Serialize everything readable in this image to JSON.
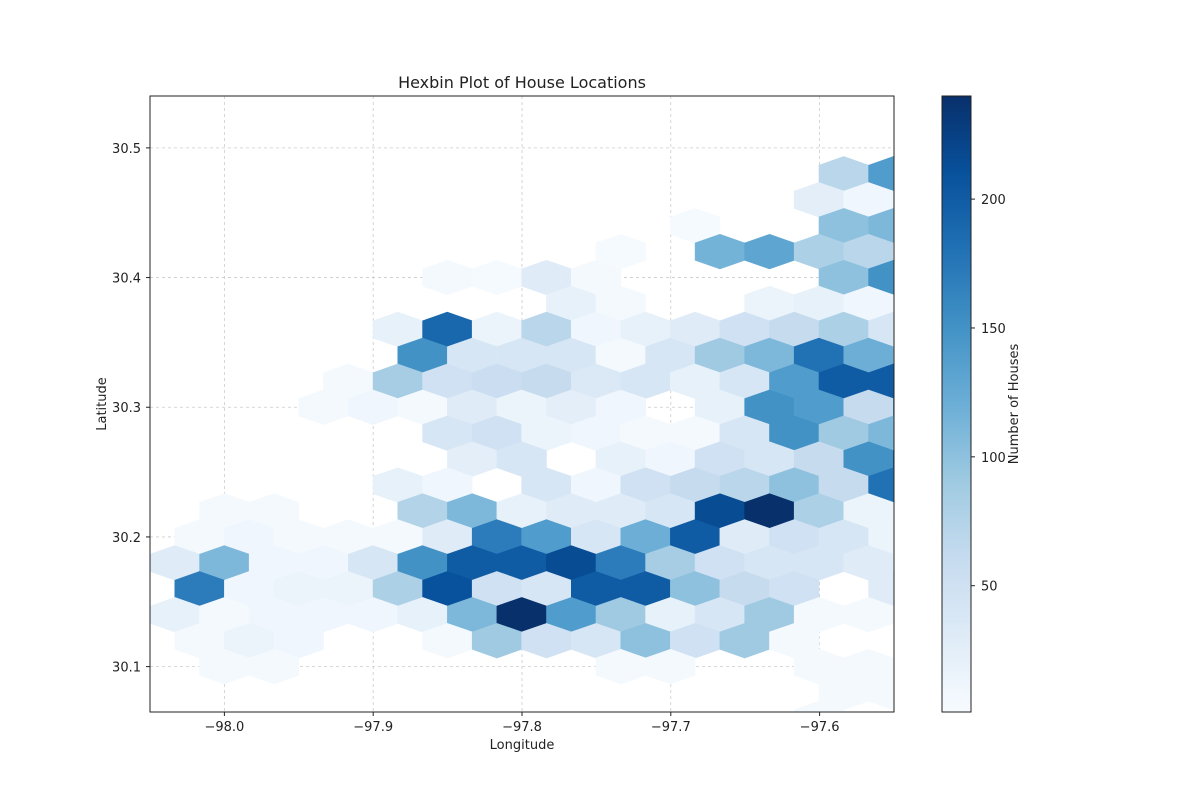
{
  "chart_data": {
    "type": "hexbin",
    "title": "Hexbin Plot of House Locations",
    "xlabel": "Longitude",
    "ylabel": "Latitude",
    "xlim": [
      -98.05,
      -97.55
    ],
    "ylim": [
      30.065,
      30.54
    ],
    "xticks": [
      -98.0,
      -97.9,
      -97.8,
      -97.7,
      -97.6
    ],
    "xtick_labels": [
      "−98.0",
      "−97.9",
      "−97.8",
      "−97.7",
      "−97.6"
    ],
    "yticks": [
      30.1,
      30.2,
      30.3,
      30.4,
      30.5
    ],
    "ytick_labels": [
      "30.1",
      "30.2",
      "30.3",
      "30.4",
      "30.5"
    ],
    "grid": true,
    "colormap": "Blues",
    "colorbar": {
      "label": "Number of Houses",
      "range": [
        1,
        240
      ],
      "ticks": [
        50,
        100,
        150,
        200
      ],
      "tick_labels": [
        "50",
        "100",
        "150",
        "200"
      ]
    },
    "hex_grid": {
      "x0": -98.0,
      "dx": 0.0333,
      "y0": 30.5,
      "dy": 0.02
    },
    "bins": [
      [
        15,
        0,
        15
      ],
      [
        12,
        1,
        70
      ],
      [
        13,
        1,
        140
      ],
      [
        14,
        1,
        95
      ],
      [
        15,
        1,
        5
      ],
      [
        12,
        2,
        25
      ],
      [
        13,
        2,
        10
      ],
      [
        14,
        2,
        20
      ],
      [
        16,
        2,
        3
      ],
      [
        9,
        3,
        3
      ],
      [
        12,
        3,
        100
      ],
      [
        13,
        3,
        110
      ],
      [
        17,
        3,
        35
      ],
      [
        18,
        3,
        25
      ],
      [
        8,
        4,
        3
      ],
      [
        10,
        4,
        115
      ],
      [
        11,
        4,
        130
      ],
      [
        12,
        4,
        80
      ],
      [
        13,
        4,
        70
      ],
      [
        14,
        4,
        10
      ],
      [
        15,
        4,
        10
      ],
      [
        17,
        4,
        130
      ],
      [
        4,
        5,
        5
      ],
      [
        5,
        5,
        3
      ],
      [
        6,
        5,
        30
      ],
      [
        7,
        5,
        5
      ],
      [
        12,
        5,
        100
      ],
      [
        13,
        5,
        150
      ],
      [
        14,
        5,
        80
      ],
      [
        15,
        5,
        160
      ],
      [
        16,
        5,
        160
      ],
      [
        17,
        5,
        20
      ],
      [
        18,
        5,
        15
      ],
      [
        7,
        6,
        20
      ],
      [
        8,
        6,
        5
      ],
      [
        11,
        6,
        15
      ],
      [
        12,
        6,
        20
      ],
      [
        13,
        6,
        10
      ],
      [
        14,
        6,
        5
      ],
      [
        15,
        6,
        30
      ],
      [
        16,
        6,
        40
      ],
      [
        18,
        6,
        100
      ],
      [
        19,
        6,
        20
      ],
      [
        3,
        7,
        20
      ],
      [
        4,
        7,
        190
      ],
      [
        5,
        7,
        15
      ],
      [
        6,
        7,
        70
      ],
      [
        7,
        7,
        10
      ],
      [
        8,
        7,
        20
      ],
      [
        9,
        7,
        30
      ],
      [
        10,
        7,
        50
      ],
      [
        11,
        7,
        60
      ],
      [
        12,
        7,
        80
      ],
      [
        13,
        7,
        40
      ],
      [
        14,
        7,
        140
      ],
      [
        15,
        7,
        150
      ],
      [
        16,
        7,
        70
      ],
      [
        17,
        7,
        5
      ],
      [
        18,
        7,
        5
      ],
      [
        4,
        8,
        150
      ],
      [
        5,
        8,
        40
      ],
      [
        6,
        8,
        40
      ],
      [
        7,
        8,
        40
      ],
      [
        8,
        8,
        5
      ],
      [
        9,
        8,
        40
      ],
      [
        10,
        8,
        90
      ],
      [
        11,
        8,
        110
      ],
      [
        12,
        8,
        180
      ],
      [
        13,
        8,
        120
      ],
      [
        14,
        8,
        100
      ],
      [
        15,
        8,
        50
      ],
      [
        16,
        8,
        25
      ],
      [
        17,
        8,
        110
      ],
      [
        2,
        9,
        5
      ],
      [
        3,
        9,
        85
      ],
      [
        4,
        9,
        50
      ],
      [
        5,
        9,
        55
      ],
      [
        6,
        9,
        60
      ],
      [
        7,
        9,
        35
      ],
      [
        8,
        9,
        40
      ],
      [
        9,
        9,
        20
      ],
      [
        10,
        9,
        40
      ],
      [
        11,
        9,
        140
      ],
      [
        12,
        9,
        200
      ],
      [
        13,
        9,
        200
      ],
      [
        14,
        9,
        30
      ],
      [
        15,
        9,
        5
      ],
      [
        16,
        9,
        20
      ],
      [
        17,
        9,
        40
      ],
      [
        18,
        9,
        15
      ],
      [
        19,
        9,
        10
      ],
      [
        2,
        10,
        5
      ],
      [
        3,
        10,
        10
      ],
      [
        4,
        10,
        5
      ],
      [
        5,
        10,
        30
      ],
      [
        6,
        10,
        15
      ],
      [
        7,
        10,
        25
      ],
      [
        8,
        10,
        10
      ],
      [
        10,
        10,
        20
      ],
      [
        11,
        10,
        150
      ],
      [
        12,
        10,
        140
      ],
      [
        13,
        10,
        60
      ],
      [
        14,
        10,
        140
      ],
      [
        15,
        10,
        70
      ],
      [
        16,
        10,
        15
      ],
      [
        20,
        10,
        5
      ],
      [
        4,
        11,
        40
      ],
      [
        5,
        11,
        50
      ],
      [
        6,
        11,
        15
      ],
      [
        7,
        11,
        10
      ],
      [
        8,
        11,
        5
      ],
      [
        9,
        11,
        5
      ],
      [
        10,
        11,
        40
      ],
      [
        11,
        11,
        150
      ],
      [
        12,
        11,
        90
      ],
      [
        13,
        11,
        110
      ],
      [
        14,
        11,
        170
      ],
      [
        15,
        11,
        100
      ],
      [
        16,
        11,
        70
      ],
      [
        17,
        11,
        5
      ],
      [
        5,
        12,
        25
      ],
      [
        6,
        12,
        40
      ],
      [
        8,
        12,
        20
      ],
      [
        9,
        12,
        10
      ],
      [
        10,
        12,
        50
      ],
      [
        11,
        12,
        40
      ],
      [
        12,
        12,
        60
      ],
      [
        13,
        12,
        150
      ],
      [
        14,
        12,
        190
      ],
      [
        15,
        12,
        10
      ],
      [
        16,
        12,
        70
      ],
      [
        17,
        12,
        25
      ],
      [
        3,
        13,
        20
      ],
      [
        4,
        13,
        10
      ],
      [
        6,
        13,
        40
      ],
      [
        7,
        13,
        10
      ],
      [
        8,
        13,
        50
      ],
      [
        9,
        13,
        60
      ],
      [
        10,
        13,
        70
      ],
      [
        11,
        13,
        100
      ],
      [
        12,
        13,
        60
      ],
      [
        13,
        13,
        180
      ],
      [
        14,
        13,
        110
      ],
      [
        15,
        13,
        40
      ],
      [
        16,
        13,
        5
      ],
      [
        20,
        13,
        40
      ],
      [
        0,
        14,
        5
      ],
      [
        1,
        14,
        5
      ],
      [
        4,
        14,
        75
      ],
      [
        5,
        14,
        110
      ],
      [
        6,
        14,
        20
      ],
      [
        7,
        14,
        30
      ],
      [
        8,
        14,
        30
      ],
      [
        9,
        14,
        40
      ],
      [
        10,
        14,
        215
      ],
      [
        11,
        14,
        240
      ],
      [
        12,
        14,
        80
      ],
      [
        13,
        14,
        15
      ],
      [
        14,
        14,
        5
      ],
      [
        19,
        14,
        70
      ],
      [
        20,
        14,
        40
      ],
      [
        -1,
        15,
        5
      ],
      [
        0,
        15,
        10
      ],
      [
        1,
        15,
        5
      ],
      [
        2,
        15,
        5
      ],
      [
        3,
        15,
        5
      ],
      [
        4,
        15,
        30
      ],
      [
        5,
        15,
        170
      ],
      [
        6,
        15,
        140
      ],
      [
        7,
        15,
        40
      ],
      [
        8,
        15,
        120
      ],
      [
        9,
        15,
        200
      ],
      [
        10,
        15,
        30
      ],
      [
        11,
        15,
        50
      ],
      [
        12,
        15,
        40
      ],
      [
        13,
        15,
        15
      ],
      [
        14,
        15,
        95
      ],
      [
        15,
        15,
        10
      ],
      [
        16,
        15,
        5
      ],
      [
        17,
        15,
        15
      ],
      [
        19,
        15,
        10
      ],
      [
        -2,
        16,
        5
      ],
      [
        -1,
        16,
        30
      ],
      [
        0,
        16,
        110
      ],
      [
        1,
        16,
        10
      ],
      [
        2,
        16,
        10
      ],
      [
        3,
        16,
        40
      ],
      [
        4,
        16,
        150
      ],
      [
        5,
        16,
        200
      ],
      [
        6,
        16,
        200
      ],
      [
        7,
        16,
        215
      ],
      [
        8,
        16,
        170
      ],
      [
        9,
        16,
        85
      ],
      [
        10,
        16,
        50
      ],
      [
        11,
        16,
        40
      ],
      [
        12,
        16,
        40
      ],
      [
        13,
        16,
        30
      ],
      [
        14,
        16,
        10
      ],
      [
        15,
        16,
        5
      ],
      [
        16,
        16,
        15
      ],
      [
        -1,
        17,
        170
      ],
      [
        0,
        17,
        10
      ],
      [
        1,
        17,
        15
      ],
      [
        2,
        17,
        15
      ],
      [
        3,
        17,
        80
      ],
      [
        4,
        17,
        210
      ],
      [
        5,
        17,
        50
      ],
      [
        6,
        17,
        40
      ],
      [
        7,
        17,
        200
      ],
      [
        8,
        17,
        200
      ],
      [
        9,
        17,
        100
      ],
      [
        10,
        17,
        60
      ],
      [
        11,
        17,
        50
      ],
      [
        13,
        17,
        30
      ],
      [
        16,
        17,
        5
      ],
      [
        -2,
        18,
        90
      ],
      [
        -1,
        18,
        20
      ],
      [
        0,
        18,
        5
      ],
      [
        1,
        18,
        10
      ],
      [
        2,
        18,
        10
      ],
      [
        3,
        18,
        10
      ],
      [
        4,
        18,
        20
      ],
      [
        5,
        18,
        110
      ],
      [
        6,
        18,
        240
      ],
      [
        7,
        18,
        140
      ],
      [
        8,
        18,
        90
      ],
      [
        9,
        18,
        20
      ],
      [
        10,
        18,
        40
      ],
      [
        11,
        18,
        90
      ],
      [
        12,
        18,
        5
      ],
      [
        13,
        18,
        5
      ],
      [
        14,
        18,
        5
      ],
      [
        15,
        18,
        40
      ],
      [
        16,
        18,
        10
      ],
      [
        -1,
        19,
        5
      ],
      [
        0,
        19,
        15
      ],
      [
        1,
        19,
        10
      ],
      [
        4,
        19,
        5
      ],
      [
        5,
        19,
        90
      ],
      [
        6,
        19,
        50
      ],
      [
        7,
        19,
        40
      ],
      [
        8,
        19,
        100
      ],
      [
        9,
        19,
        50
      ],
      [
        10,
        19,
        90
      ],
      [
        11,
        19,
        5
      ],
      [
        14,
        19,
        10
      ],
      [
        0,
        20,
        5
      ],
      [
        1,
        20,
        5
      ],
      [
        8,
        20,
        5
      ],
      [
        9,
        20,
        5
      ],
      [
        12,
        20,
        5
      ],
      [
        13,
        20,
        5
      ],
      [
        12,
        21,
        5
      ],
      [
        13,
        21,
        5
      ],
      [
        12,
        22,
        5
      ]
    ]
  }
}
